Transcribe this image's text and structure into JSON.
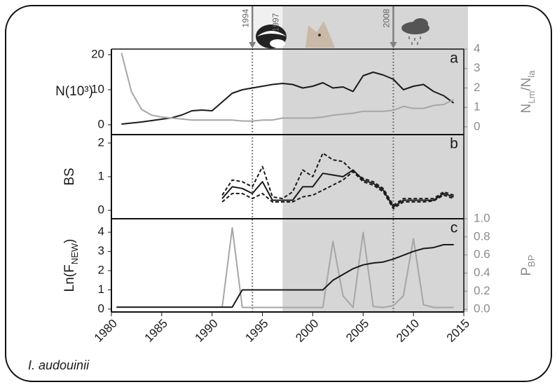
{
  "species": "I. audouinii",
  "annotations": [
    {
      "x": 1994,
      "arrow": true
    },
    {
      "x": 1997,
      "arrow": false
    },
    {
      "x": 2008,
      "arrow": true
    }
  ],
  "chart_data": [
    {
      "type": "line",
      "letter": "a",
      "y_label": [
        {
          "text": "N(10³)"
        }
      ],
      "y2_label": [
        {
          "text": "N"
        },
        {
          "text": "Lm",
          "sub": true
        },
        {
          "text": "/N"
        },
        {
          "text": "la",
          "sub": true
        }
      ],
      "ylim": [
        -2.8,
        21.6
      ],
      "yticks": [
        0,
        10,
        20
      ],
      "y2lim": [
        -0.4,
        4
      ],
      "y2ticks": [
        0,
        1,
        2,
        3,
        4
      ],
      "series": [
        {
          "color": "#1a1a1a",
          "x": [
            1981,
            1982,
            1983,
            1984,
            1985,
            1986,
            1987,
            1988,
            1989,
            1990,
            1991,
            1992,
            1993,
            1994,
            1995,
            1996,
            1997,
            1998,
            1999,
            2000,
            2001,
            2002,
            2003,
            2004,
            2005,
            2006,
            2007,
            2008,
            2009,
            2010,
            2011,
            2012,
            2013,
            2014
          ],
          "values": [
            0.2,
            0.5,
            0.8,
            1.2,
            1.6,
            2,
            2.8,
            4,
            4.2,
            4,
            6.5,
            9,
            10,
            10.5,
            11,
            11.5,
            11.8,
            11.5,
            10.5,
            11,
            12,
            10.5,
            10.8,
            9.5,
            14,
            15,
            14.2,
            13,
            10,
            11,
            11.5,
            9.5,
            8.3,
            6.2
          ]
        },
        {
          "color": "#a6a6a6",
          "axis": "y2",
          "x": [
            1981,
            1982,
            1983,
            1984,
            1985,
            1986,
            1987,
            1988,
            1989,
            1990,
            1991,
            1992,
            1993,
            1994,
            1995,
            1996,
            1997,
            1998,
            1999,
            2000,
            2001,
            2002,
            2003,
            2004,
            2005,
            2006,
            2007,
            2008,
            2009,
            2010,
            2011,
            2012,
            2013,
            2014
          ],
          "values": [
            3.8,
            1.8,
            0.9,
            0.6,
            0.5,
            0.45,
            0.4,
            0.35,
            0.35,
            0.35,
            0.35,
            0.35,
            0.3,
            0.3,
            0.35,
            0.35,
            0.45,
            0.45,
            0.45,
            0.45,
            0.5,
            0.6,
            0.65,
            0.7,
            0.8,
            0.8,
            0.8,
            0.85,
            1.05,
            0.95,
            0.95,
            1.1,
            1.15,
            1.4
          ]
        }
      ]
    },
    {
      "type": "line",
      "letter": "b",
      "y_label": [
        {
          "text": "BS"
        }
      ],
      "ylim": [
        -0.25,
        2.25
      ],
      "yticks": [
        0,
        1,
        2
      ],
      "series": [
        {
          "color": "#1a1a1a",
          "x": [
            1991,
            1992,
            1993,
            1994,
            1995,
            1996,
            1997,
            1998,
            1999,
            2000,
            2001,
            2002,
            2003,
            2004,
            2005,
            2006,
            2007,
            2008,
            2009,
            2010,
            2011,
            2012,
            2013,
            2014
          ],
          "values": [
            0.35,
            0.7,
            0.65,
            0.5,
            0.85,
            0.3,
            0.3,
            0.3,
            0.7,
            0.7,
            1.1,
            1.05,
            1.0,
            1.2,
            0.9,
            0.8,
            0.6,
            0.1,
            0.3,
            0.3,
            0.3,
            0.3,
            0.5,
            0.4
          ]
        },
        {
          "color": "#1a1a1a",
          "dashed": true,
          "x": [
            1991,
            1992,
            1993,
            1994,
            1995,
            1996,
            1997,
            1998,
            1999,
            2000,
            2001,
            2002,
            2003,
            2004,
            2005,
            2006,
            2007,
            2008,
            2009,
            2010,
            2011,
            2012,
            2013,
            2014
          ],
          "values": [
            0.45,
            0.9,
            0.85,
            0.7,
            1.3,
            0.4,
            0.35,
            0.55,
            1.2,
            1.0,
            1.7,
            1.5,
            1.45,
            1.15,
            0.95,
            0.85,
            0.65,
            0.15,
            0.35,
            0.35,
            0.35,
            0.35,
            0.55,
            0.45
          ]
        },
        {
          "color": "#1a1a1a",
          "dashed": true,
          "x": [
            1991,
            1992,
            1993,
            1994,
            1995,
            1996,
            1997,
            1998,
            1999,
            2000,
            2001,
            2002,
            2003,
            2004,
            2005,
            2006,
            2007,
            2008,
            2009,
            2010,
            2011,
            2012,
            2013,
            2014
          ],
          "values": [
            0.25,
            0.5,
            0.5,
            0.35,
            0.5,
            0.25,
            0.25,
            0.25,
            0.4,
            0.45,
            0.6,
            0.75,
            0.9,
            1.15,
            0.85,
            0.75,
            0.55,
            0.05,
            0.25,
            0.25,
            0.25,
            0.28,
            0.45,
            0.35
          ]
        }
      ]
    },
    {
      "type": "line",
      "letter": "c",
      "y_label": [
        {
          "text": "Ln(F"
        },
        {
          "text": "NEW",
          "sub": true
        },
        {
          "text": ")"
        }
      ],
      "y2_label": [
        {
          "text": "P"
        },
        {
          "text": "BP",
          "sub": true
        }
      ],
      "xlim": [
        1980,
        2015
      ],
      "xticks": [
        1980,
        1985,
        1990,
        1995,
        2000,
        2005,
        2010,
        2015
      ],
      "ylim": [
        -0.15,
        4.7
      ],
      "yticks": [
        0,
        1,
        2,
        3,
        4
      ],
      "y2lim": [
        -0.03,
        1
      ],
      "y2ticks": [
        {
          "value": 0,
          "label": "0.0"
        },
        0.2,
        0.4,
        0.6,
        0.8,
        {
          "value": 1,
          "label": "1.0"
        }
      ],
      "series": [
        {
          "color": "#a6a6a6",
          "axis": "y2",
          "x": [
            1991,
            1992,
            1993,
            1994,
            1995,
            1996,
            1997,
            1998,
            1999,
            2000,
            2001,
            2002,
            2003,
            2004,
            2005,
            2006,
            2007,
            2008,
            2009,
            2010,
            2011,
            2012,
            2013,
            2014
          ],
          "values": [
            0.02,
            0.9,
            0.02,
            0.02,
            0.02,
            0.02,
            0.02,
            0.02,
            0.02,
            0.02,
            0.02,
            0.75,
            0.15,
            0.02,
            0.85,
            0.03,
            0.02,
            0.04,
            0.15,
            0.78,
            0.05,
            0.02,
            0.02,
            0.02
          ]
        },
        {
          "color": "#1a1a1a",
          "x": [
            1980.5,
            1992,
            1993,
            2001,
            2002,
            2003,
            2004,
            2005,
            2006,
            2007,
            2008,
            2009,
            2010,
            2011,
            2012,
            2013,
            2014
          ],
          "values": [
            0.1,
            0.1,
            1,
            1,
            1.5,
            1.8,
            2.1,
            2.3,
            2.4,
            2.45,
            2.6,
            2.8,
            3.0,
            3.15,
            3.2,
            3.35,
            3.35
          ]
        }
      ]
    }
  ]
}
